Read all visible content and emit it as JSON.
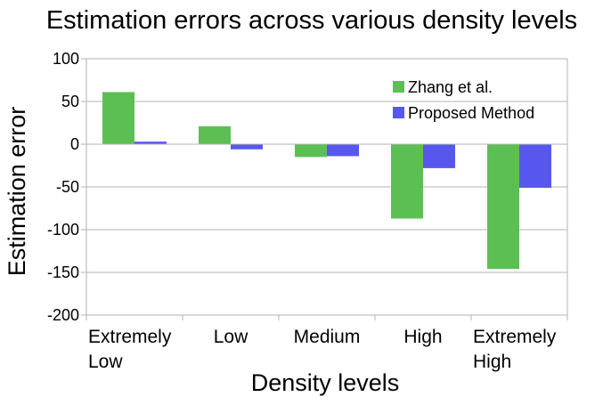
{
  "chart_data": {
    "type": "bar",
    "title": "Estimation errors across various density levels",
    "xlabel": "Density levels",
    "ylabel": "Estimation error",
    "categories": [
      [
        "Extremely",
        "Low"
      ],
      [
        "Low"
      ],
      [
        "Medium"
      ],
      [
        "High"
      ],
      [
        "Extremely",
        "High"
      ]
    ],
    "series": [
      {
        "name": "Zhang et al.",
        "color": "#5cbf54",
        "values": [
          61,
          21,
          -15,
          -87,
          -146
        ]
      },
      {
        "name": "Proposed Method",
        "color": "#5757f0",
        "values": [
          3,
          -6,
          -14,
          -28,
          -51
        ]
      }
    ],
    "ylim": [
      -200,
      100
    ],
    "yticks": [
      100,
      50,
      0,
      -50,
      -100,
      -150,
      -200
    ],
    "ytick_labels": [
      "100",
      "50",
      "0",
      "-50",
      "-100",
      "-150",
      "-200"
    ],
    "grid": true,
    "legend_position": "top-right"
  }
}
